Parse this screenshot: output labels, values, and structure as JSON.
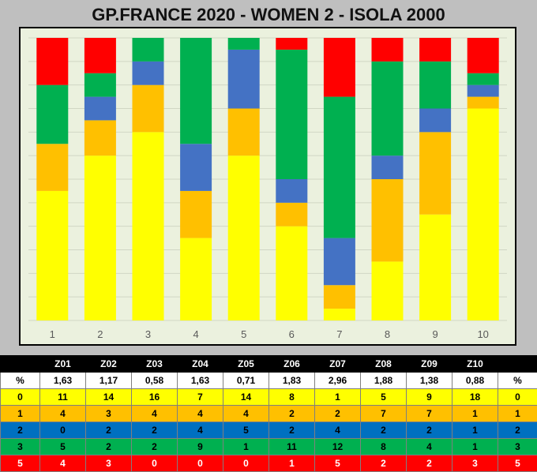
{
  "title": "GP.FRANCE 2020 - WOMEN 2 - ISOLA 2000",
  "colors": {
    "level_0": "#ffff00",
    "level_1": "#ffc000",
    "level_2": "#4472c4",
    "level_3": "#00b050",
    "level_5": "#ff0000",
    "plot_background": "#ebf1de",
    "page_background": "#bfbfbf"
  },
  "chart_data": {
    "type": "bar",
    "stacked": true,
    "categories": [
      "1",
      "2",
      "3",
      "4",
      "5",
      "6",
      "7",
      "8",
      "9",
      "10"
    ],
    "series": [
      {
        "level": "0",
        "color": "#ffff00",
        "values": [
          11,
          14,
          16,
          7,
          14,
          8,
          1,
          5,
          9,
          18
        ]
      },
      {
        "level": "1",
        "color": "#ffc000",
        "values": [
          4,
          3,
          4,
          4,
          4,
          2,
          2,
          7,
          7,
          1
        ]
      },
      {
        "level": "2",
        "color": "#4472c4",
        "values": [
          0,
          2,
          2,
          4,
          5,
          2,
          4,
          2,
          2,
          1
        ]
      },
      {
        "level": "3",
        "color": "#00b050",
        "values": [
          5,
          2,
          2,
          9,
          1,
          11,
          12,
          8,
          4,
          1
        ]
      },
      {
        "level": "5",
        "color": "#ff0000",
        "values": [
          4,
          3,
          0,
          0,
          0,
          1,
          5,
          2,
          2,
          3
        ]
      }
    ],
    "ylim": [
      0,
      24
    ],
    "grid": true,
    "legend": "none"
  },
  "table": {
    "header": [
      "",
      "Z01",
      "Z02",
      "Z03",
      "Z04",
      "Z05",
      "Z06",
      "Z07",
      "Z08",
      "Z09",
      "Z10",
      ""
    ],
    "percent_row": {
      "label": "%",
      "values": [
        "1,63",
        "1,17",
        "0,58",
        "1,63",
        "0,71",
        "1,83",
        "2,96",
        "1,88",
        "1,38",
        "0,88"
      ],
      "end_label": "%"
    },
    "rows": [
      {
        "label": "0",
        "values": [
          "11",
          "14",
          "16",
          "7",
          "14",
          "8",
          "1",
          "5",
          "9",
          "18"
        ],
        "end_label": "0",
        "bg": "#ffff00",
        "fg": "#000000"
      },
      {
        "label": "1",
        "values": [
          "4",
          "3",
          "4",
          "4",
          "4",
          "2",
          "2",
          "7",
          "7",
          "1"
        ],
        "end_label": "1",
        "bg": "#ffc000",
        "fg": "#000000"
      },
      {
        "label": "2",
        "values": [
          "0",
          "2",
          "2",
          "4",
          "5",
          "2",
          "4",
          "2",
          "2",
          "1"
        ],
        "end_label": "2",
        "bg": "#0070c0",
        "fg": "#000000"
      },
      {
        "label": "3",
        "values": [
          "5",
          "2",
          "2",
          "9",
          "1",
          "11",
          "12",
          "8",
          "4",
          "1"
        ],
        "end_label": "3",
        "bg": "#00b050",
        "fg": "#000000"
      },
      {
        "label": "5",
        "values": [
          "4",
          "3",
          "0",
          "0",
          "0",
          "1",
          "5",
          "2",
          "2",
          "3"
        ],
        "end_label": "5",
        "bg": "#ff0000",
        "fg": "#ffffff"
      }
    ]
  }
}
